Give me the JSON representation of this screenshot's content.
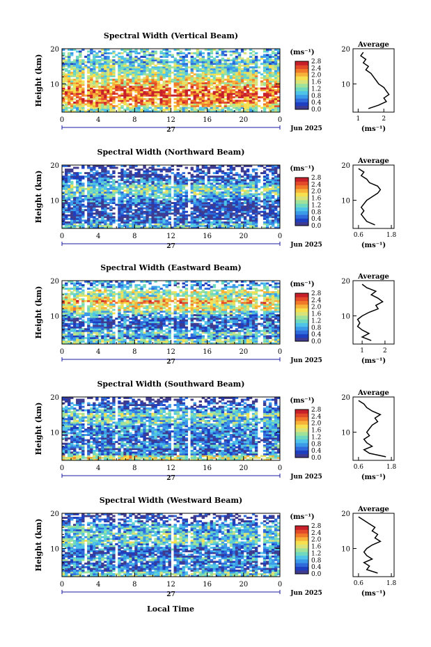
{
  "figure": {
    "x_label": "Local Time",
    "day_label": "27",
    "month_label": "Jun 2025",
    "colorbar_unit": "(ms⁻¹)",
    "average_title": "Average",
    "average_xlabel": "(ms⁻¹)",
    "y_label": "Height (km)"
  },
  "chart_data": [
    {
      "type": "heatmap",
      "title": "Spectral Width (Vertical Beam)",
      "ylabel": "Height (km)",
      "xlabel": "Local Time",
      "xlim": [
        0,
        24
      ],
      "ylim": [
        2,
        20
      ],
      "x_ticks": [
        "0",
        "4",
        "8",
        "12",
        "16",
        "20",
        "0"
      ],
      "y_ticks": [
        "10",
        "20"
      ],
      "colorbar_ticks": [
        "2.8",
        "2.4",
        "2.0",
        "1.6",
        "1.2",
        "0.8",
        "0.4",
        "0.0"
      ],
      "colorbar_range": [
        0.0,
        2.8
      ],
      "profile_title": "Average",
      "profile_xlim": [
        0.8,
        2.4
      ],
      "profile_xticks": [
        "1",
        "2"
      ],
      "profile": [
        {
          "h": 19,
          "v": 1.2
        },
        {
          "h": 18,
          "v": 1.1
        },
        {
          "h": 17,
          "v": 1.3
        },
        {
          "h": 16,
          "v": 1.2
        },
        {
          "h": 15,
          "v": 1.4
        },
        {
          "h": 14,
          "v": 1.3
        },
        {
          "h": 13,
          "v": 1.5
        },
        {
          "h": 12,
          "v": 1.6
        },
        {
          "h": 11,
          "v": 1.7
        },
        {
          "h": 10,
          "v": 1.8
        },
        {
          "h": 9,
          "v": 2.0
        },
        {
          "h": 8,
          "v": 2.1
        },
        {
          "h": 7,
          "v": 2.2
        },
        {
          "h": 6,
          "v": 2.0
        },
        {
          "h": 5,
          "v": 2.1
        },
        {
          "h": 4,
          "v": 1.8
        },
        {
          "h": 3,
          "v": 1.4
        }
      ]
    },
    {
      "type": "heatmap",
      "title": "Spectral Width (Northward Beam)",
      "ylabel": "Height (km)",
      "xlabel": "Local Time",
      "xlim": [
        0,
        24
      ],
      "ylim": [
        2,
        20
      ],
      "x_ticks": [
        "0",
        "4",
        "8",
        "12",
        "16",
        "20",
        "0"
      ],
      "y_ticks": [
        "10",
        "20"
      ],
      "colorbar_ticks": [
        "2.8",
        "2.4",
        "2.0",
        "1.6",
        "1.2",
        "0.8",
        "0.4",
        "0.0"
      ],
      "colorbar_range": [
        0.0,
        2.8
      ],
      "profile_title": "Average",
      "profile_xlim": [
        0.4,
        1.9
      ],
      "profile_xticks": [
        "0.6",
        "1.8"
      ],
      "profile": [
        {
          "h": 19,
          "v": 0.6
        },
        {
          "h": 18,
          "v": 0.8
        },
        {
          "h": 17,
          "v": 0.7
        },
        {
          "h": 16,
          "v": 0.9
        },
        {
          "h": 15,
          "v": 1.0
        },
        {
          "h": 14,
          "v": 1.3
        },
        {
          "h": 13,
          "v": 1.4
        },
        {
          "h": 12,
          "v": 1.3
        },
        {
          "h": 11,
          "v": 1.1
        },
        {
          "h": 10,
          "v": 0.9
        },
        {
          "h": 9,
          "v": 0.8
        },
        {
          "h": 8,
          "v": 0.7
        },
        {
          "h": 7,
          "v": 0.8
        },
        {
          "h": 6,
          "v": 0.7
        },
        {
          "h": 5,
          "v": 0.8
        },
        {
          "h": 4,
          "v": 0.9
        },
        {
          "h": 3,
          "v": 1.2
        }
      ]
    },
    {
      "type": "heatmap",
      "title": "Spectral Width (Eastward Beam)",
      "ylabel": "Height (km)",
      "xlabel": "Local Time",
      "xlim": [
        0,
        24
      ],
      "ylim": [
        2,
        20
      ],
      "x_ticks": [
        "0",
        "4",
        "8",
        "12",
        "16",
        "20",
        "0"
      ],
      "y_ticks": [
        "10",
        "20"
      ],
      "colorbar_ticks": [
        "2.8",
        "2.4",
        "2.0",
        "1.6",
        "1.2",
        "0.8",
        "0.4",
        "0.0"
      ],
      "colorbar_range": [
        0.0,
        2.8
      ],
      "profile_title": "Average",
      "profile_xlim": [
        0.6,
        2.4
      ],
      "profile_xticks": [
        "1",
        "2"
      ],
      "profile": [
        {
          "h": 19,
          "v": 1.0
        },
        {
          "h": 18,
          "v": 1.2
        },
        {
          "h": 17,
          "v": 1.6
        },
        {
          "h": 16,
          "v": 1.4
        },
        {
          "h": 15,
          "v": 1.7
        },
        {
          "h": 14,
          "v": 1.9
        },
        {
          "h": 13,
          "v": 1.6
        },
        {
          "h": 12,
          "v": 1.7
        },
        {
          "h": 11,
          "v": 1.3
        },
        {
          "h": 10,
          "v": 1.0
        },
        {
          "h": 9,
          "v": 0.8
        },
        {
          "h": 8,
          "v": 0.9
        },
        {
          "h": 7,
          "v": 0.8
        },
        {
          "h": 6,
          "v": 1.0
        },
        {
          "h": 5,
          "v": 1.3
        },
        {
          "h": 4,
          "v": 1.0
        },
        {
          "h": 3,
          "v": 1.4
        }
      ]
    },
    {
      "type": "heatmap",
      "title": "Spectral Width (Southward Beam)",
      "ylabel": "Height (km)",
      "xlabel": "Local Time",
      "xlim": [
        0,
        24
      ],
      "ylim": [
        2,
        20
      ],
      "x_ticks": [
        "0",
        "4",
        "8",
        "12",
        "16",
        "20",
        "0"
      ],
      "y_ticks": [
        "10",
        "20"
      ],
      "colorbar_ticks": [
        "2.8",
        "2.4",
        "2.0",
        "1.6",
        "1.2",
        "0.8",
        "0.4",
        "0.0"
      ],
      "colorbar_range": [
        0.0,
        2.8
      ],
      "profile_title": "Average",
      "profile_xlim": [
        0.4,
        1.9
      ],
      "profile_xticks": [
        "0.6",
        "1.8"
      ],
      "profile": [
        {
          "h": 19,
          "v": 0.6
        },
        {
          "h": 18,
          "v": 0.8
        },
        {
          "h": 17,
          "v": 0.9
        },
        {
          "h": 16,
          "v": 1.1
        },
        {
          "h": 15,
          "v": 1.4
        },
        {
          "h": 14,
          "v": 1.2
        },
        {
          "h": 13,
          "v": 1.3
        },
        {
          "h": 12,
          "v": 1.1
        },
        {
          "h": 11,
          "v": 1.0
        },
        {
          "h": 10,
          "v": 0.9
        },
        {
          "h": 9,
          "v": 1.0
        },
        {
          "h": 8,
          "v": 0.8
        },
        {
          "h": 7,
          "v": 0.9
        },
        {
          "h": 6,
          "v": 1.1
        },
        {
          "h": 5,
          "v": 0.8
        },
        {
          "h": 4,
          "v": 1.0
        },
        {
          "h": 3,
          "v": 1.6
        }
      ]
    },
    {
      "type": "heatmap",
      "title": "Spectral Width (Westward Beam)",
      "ylabel": "Height (km)",
      "xlabel": "Local Time",
      "xlim": [
        0,
        24
      ],
      "ylim": [
        2,
        20
      ],
      "x_ticks": [
        "0",
        "4",
        "8",
        "12",
        "16",
        "20",
        "0"
      ],
      "y_ticks": [
        "10",
        "20"
      ],
      "colorbar_ticks": [
        "2.8",
        "2.4",
        "2.0",
        "1.6",
        "1.2",
        "0.8",
        "0.4",
        "0.0"
      ],
      "colorbar_range": [
        0.0,
        2.8
      ],
      "profile_title": "Average",
      "profile_xlim": [
        0.4,
        1.9
      ],
      "profile_xticks": [
        "0.6",
        "1.8"
      ],
      "profile": [
        {
          "h": 19,
          "v": 0.6
        },
        {
          "h": 18,
          "v": 0.8
        },
        {
          "h": 17,
          "v": 1.0
        },
        {
          "h": 16,
          "v": 1.2
        },
        {
          "h": 15,
          "v": 1.1
        },
        {
          "h": 14,
          "v": 1.3
        },
        {
          "h": 13,
          "v": 1.2
        },
        {
          "h": 12,
          "v": 1.4
        },
        {
          "h": 11,
          "v": 1.1
        },
        {
          "h": 10,
          "v": 0.9
        },
        {
          "h": 9,
          "v": 0.8
        },
        {
          "h": 8,
          "v": 0.9
        },
        {
          "h": 7,
          "v": 1.1
        },
        {
          "h": 6,
          "v": 0.8
        },
        {
          "h": 5,
          "v": 1.0
        },
        {
          "h": 4,
          "v": 0.9
        },
        {
          "h": 3,
          "v": 1.3
        }
      ]
    }
  ]
}
